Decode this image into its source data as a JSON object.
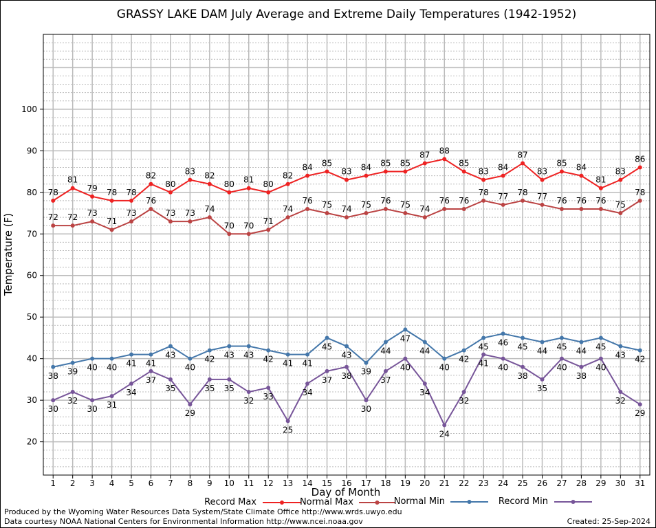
{
  "chart_data": {
    "type": "line",
    "title": "GRASSY LAKE DAM July Average and Extreme Daily Temperatures (1942-1952)",
    "xlabel": "Day of Month",
    "ylabel": "Temperature (F)",
    "xlim": [
      0.5,
      31.5
    ],
    "ylim": [
      12,
      118
    ],
    "yticks": [
      20,
      30,
      40,
      50,
      60,
      70,
      80,
      90,
      100
    ],
    "x": [
      1,
      2,
      3,
      4,
      5,
      6,
      7,
      8,
      9,
      10,
      11,
      12,
      13,
      14,
      15,
      16,
      17,
      18,
      19,
      20,
      21,
      22,
      23,
      24,
      25,
      26,
      27,
      28,
      29,
      30,
      31
    ],
    "grid": true,
    "legend_position": "bottom",
    "series": [
      {
        "name": "Record Max",
        "color": "#ee2222",
        "label_pos": "above",
        "values": [
          78,
          81,
          79,
          78,
          78,
          82,
          80,
          83,
          82,
          80,
          81,
          80,
          82,
          84,
          85,
          83,
          84,
          85,
          85,
          87,
          88,
          85,
          83,
          84,
          87,
          83,
          85,
          84,
          81,
          83,
          86
        ]
      },
      {
        "name": "Normal Max",
        "color": "#bb4444",
        "label_pos": "above",
        "values": [
          72,
          72,
          73,
          71,
          73,
          76,
          73,
          73,
          74,
          70,
          70,
          71,
          74,
          76,
          75,
          74,
          75,
          76,
          75,
          74,
          76,
          76,
          78,
          77,
          78,
          77,
          76,
          76,
          76,
          75,
          78
        ]
      },
      {
        "name": "Normal Min",
        "color": "#4477aa",
        "label_pos": "below",
        "values": [
          38,
          39,
          40,
          40,
          41,
          41,
          43,
          40,
          42,
          43,
          43,
          42,
          41,
          41,
          45,
          43,
          39,
          44,
          47,
          44,
          40,
          42,
          45,
          46,
          45,
          44,
          45,
          44,
          45,
          43,
          42
        ]
      },
      {
        "name": "Record Min",
        "color": "#775599",
        "label_pos": "below",
        "values": [
          30,
          32,
          30,
          31,
          34,
          37,
          35,
          29,
          35,
          35,
          32,
          33,
          25,
          34,
          37,
          38,
          30,
          37,
          40,
          34,
          24,
          32,
          41,
          40,
          38,
          35,
          40,
          38,
          40,
          32,
          29
        ]
      }
    ]
  },
  "footer": {
    "line1": "Produced by the Wyoming Water Resources Data System/State Climate Office http://www.wrds.uwyo.edu",
    "line2": "Data courtesy NOAA National Centers for Environmental Information http://www.ncei.noaa.gov",
    "created": "Created:  25-Sep-2024"
  }
}
